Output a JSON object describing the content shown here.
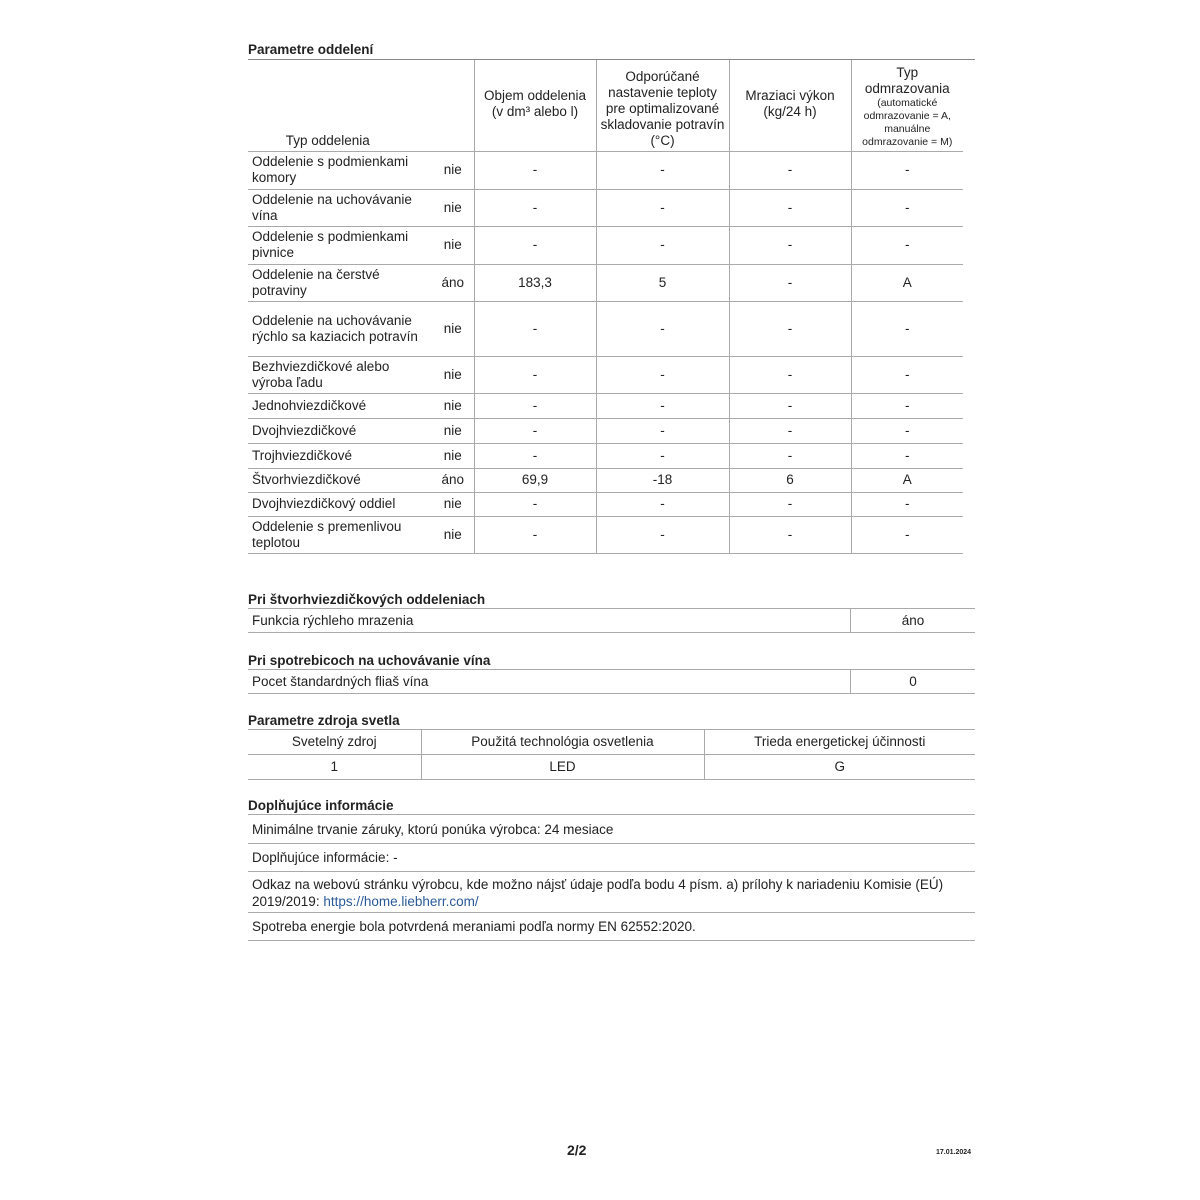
{
  "section1": {
    "title": "Parametre oddelení",
    "headers": [
      "Typ oddelenia",
      "Objem oddelenia (v dm³ alebo l)",
      "Odporúčané nastavenie teploty pre optimalizované skladovanie potravín (°C)",
      "Mraziaci výkon (kg/24 h)",
      "Typ odmrazovania"
    ],
    "header_note": "(automatické odmrazovanie = A, manuálne odmrazovanie = M)",
    "rows": [
      [
        "Oddelenie s podmienkami komory",
        "nie",
        "-",
        "-",
        "-",
        "-"
      ],
      [
        "Oddelenie na uchovávanie vína",
        "nie",
        "-",
        "-",
        "-",
        "-"
      ],
      [
        "Oddelenie s podmienkami pivnice",
        "nie",
        "-",
        "-",
        "-",
        "-"
      ],
      [
        "Oddelenie na čerstvé potraviny",
        "áno",
        "183,3",
        "5",
        "-",
        "A"
      ],
      [
        "Oddelenie na uchovávanie rýchlo sa kaziacich potravín",
        "nie",
        "-",
        "-",
        "-",
        "-"
      ],
      [
        "Bezhviezdičkové alebo výroba ľadu",
        "nie",
        "-",
        "-",
        "-",
        "-"
      ],
      [
        "Jednohviezdičkové",
        "nie",
        "-",
        "-",
        "-",
        "-"
      ],
      [
        "Dvojhviezdičkové",
        "nie",
        "-",
        "-",
        "-",
        "-"
      ],
      [
        "Trojhviezdičkové",
        "nie",
        "-",
        "-",
        "-",
        "-"
      ],
      [
        "Štvorhviezdičkové",
        "áno",
        "69,9",
        "-18",
        "6",
        "A"
      ],
      [
        "Dvojhviezdičkový oddiel",
        "nie",
        "-",
        "-",
        "-",
        "-"
      ],
      [
        "Oddelenie s premenlivou teplotou",
        "nie",
        "-",
        "-",
        "-",
        "-"
      ]
    ]
  },
  "section2": {
    "title": "Pri štvorhviezdičkových oddeleniach",
    "label": "Funkcia rýchleho mrazenia",
    "value": "áno"
  },
  "section3": {
    "title": "Pri spotrebicoch na uchovávanie vína",
    "label": "Pocet štandardných fliaš vína",
    "value": "0"
  },
  "section4": {
    "title": "Parametre zdroja svetla",
    "headers": [
      "Svetelný zdroj",
      "Použitá technológia osvetlenia",
      "Trieda energetickej účinnosti"
    ],
    "values": [
      "1",
      "LED",
      "G"
    ]
  },
  "section5": {
    "title": "Doplňujúce informácie",
    "warranty": "Minimálne trvanie záruky, ktorú ponúka výrobca: 24 mesiace",
    "extra": "Doplňujúce informácie: -",
    "link_text": "Odkaz na webovú stránku výrobcu, kde možno nájsť údaje podľa bodu 4 písm. a) prílohy k nariadeniu Komisie (EÚ) 2019/2019: ",
    "link_url": "https://home.liebherr.com/",
    "energy": "Spotreba energie bola potvrdená meraniami podľa normy EN 62552:2020."
  },
  "footer": {
    "page": "2/2",
    "date": "17.01.2024"
  },
  "colors": {
    "link": "#2a5a9a",
    "rule": "#aaaaaa"
  }
}
